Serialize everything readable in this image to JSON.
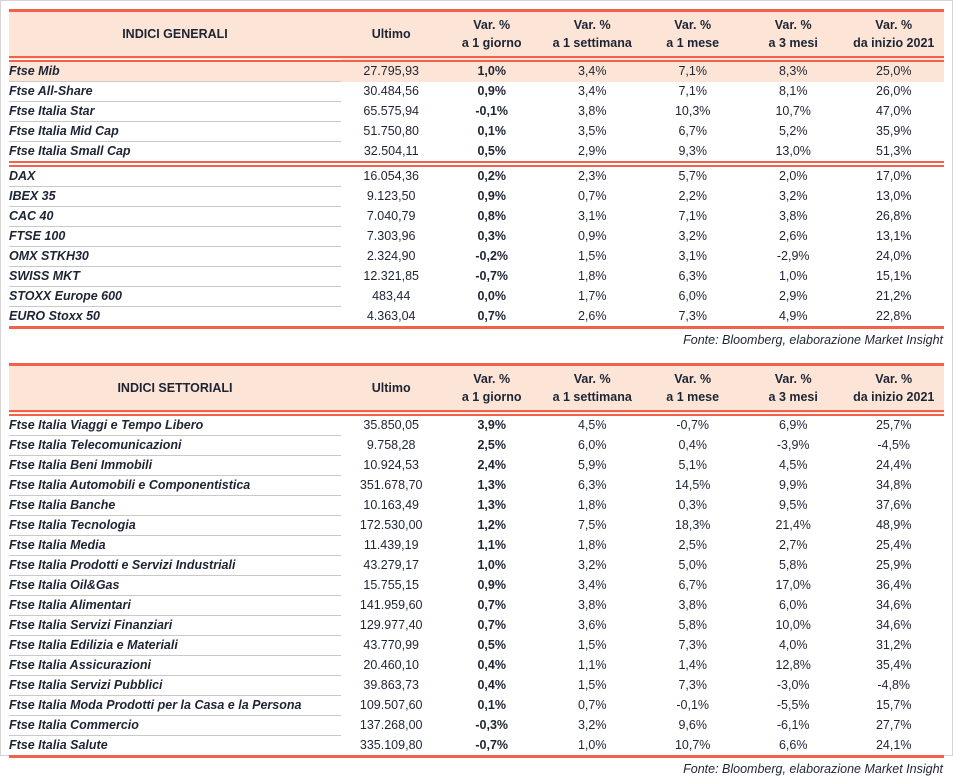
{
  "colors": {
    "accent_red": "#f5604a",
    "header_peach": "#fce5d7",
    "text_dark": "#1d2433",
    "row_divider": "#c9c9c9"
  },
  "columns": {
    "ultimo": "Ultimo",
    "var_label": "Var. %",
    "periods": [
      "a 1 giorno",
      "a 1 settimana",
      "a 1 mese",
      "a 3 mesi",
      "da inizio 2021"
    ]
  },
  "fonte": "Fonte: Bloomberg, elaborazione Market Insight",
  "generali": {
    "title": "INDICI GENERALI",
    "highlight_row": 0,
    "group_break_after": 4,
    "rows": [
      [
        "Ftse Mib",
        "27.795,93",
        "1,0%",
        "3,4%",
        "7,1%",
        "8,3%",
        "25,0%"
      ],
      [
        "Ftse All-Share",
        "30.484,56",
        "0,9%",
        "3,4%",
        "7,1%",
        "8,1%",
        "26,0%"
      ],
      [
        "Ftse Italia Star",
        "65.575,94",
        "-0,1%",
        "3,8%",
        "10,3%",
        "10,7%",
        "47,0%"
      ],
      [
        "Ftse Italia Mid Cap",
        "51.750,80",
        "0,1%",
        "3,5%",
        "6,7%",
        "5,2%",
        "35,9%"
      ],
      [
        "Ftse Italia Small Cap",
        "32.504,11",
        "0,5%",
        "2,9%",
        "9,3%",
        "13,0%",
        "51,3%"
      ],
      [
        "DAX",
        "16.054,36",
        "0,2%",
        "2,3%",
        "5,7%",
        "2,0%",
        "17,0%"
      ],
      [
        "IBEX 35",
        "9.123,50",
        "0,9%",
        "0,7%",
        "2,2%",
        "3,2%",
        "13,0%"
      ],
      [
        "CAC 40",
        "7.040,79",
        "0,8%",
        "3,1%",
        "7,1%",
        "3,8%",
        "26,8%"
      ],
      [
        "FTSE 100",
        "7.303,96",
        "0,3%",
        "0,9%",
        "3,2%",
        "2,6%",
        "13,1%"
      ],
      [
        "OMX STKH30",
        "2.324,90",
        "-0,2%",
        "1,5%",
        "3,1%",
        "-2,9%",
        "24,0%"
      ],
      [
        "SWISS MKT",
        "12.321,85",
        "-0,7%",
        "1,8%",
        "6,3%",
        "1,0%",
        "15,1%"
      ],
      [
        "STOXX Europe 600",
        "483,44",
        "0,0%",
        "1,7%",
        "6,0%",
        "2,9%",
        "21,2%"
      ],
      [
        "EURO Stoxx 50",
        "4.363,04",
        "0,7%",
        "2,6%",
        "7,3%",
        "4,9%",
        "22,8%"
      ]
    ]
  },
  "settoriali": {
    "title": "INDICI SETTORIALI",
    "highlight_row": null,
    "group_break_after": null,
    "rows": [
      [
        "Ftse Italia Viaggi e Tempo Libero",
        "35.850,05",
        "3,9%",
        "4,5%",
        "-0,7%",
        "6,9%",
        "25,7%"
      ],
      [
        "Ftse Italia Telecomunicazioni",
        "9.758,28",
        "2,5%",
        "6,0%",
        "0,4%",
        "-3,9%",
        "-4,5%"
      ],
      [
        "Ftse Italia Beni Immobili",
        "10.924,53",
        "2,4%",
        "5,9%",
        "5,1%",
        "4,5%",
        "24,4%"
      ],
      [
        "Ftse Italia Automobili e Componentistica",
        "351.678,70",
        "1,3%",
        "6,3%",
        "14,5%",
        "9,9%",
        "34,8%"
      ],
      [
        "Ftse Italia Banche",
        "10.163,49",
        "1,3%",
        "1,8%",
        "0,3%",
        "9,5%",
        "37,6%"
      ],
      [
        "Ftse Italia Tecnologia",
        "172.530,00",
        "1,2%",
        "7,5%",
        "18,3%",
        "21,4%",
        "48,9%"
      ],
      [
        "Ftse Italia Media",
        "11.439,19",
        "1,1%",
        "1,8%",
        "2,5%",
        "2,7%",
        "25,4%"
      ],
      [
        "Ftse Italia Prodotti e Servizi Industriali",
        "43.279,17",
        "1,0%",
        "3,2%",
        "5,0%",
        "5,8%",
        "25,9%"
      ],
      [
        "Ftse Italia Oil&Gas",
        "15.755,15",
        "0,9%",
        "3,4%",
        "6,7%",
        "17,0%",
        "36,4%"
      ],
      [
        "Ftse Italia Alimentari",
        "141.959,60",
        "0,7%",
        "3,8%",
        "3,8%",
        "6,0%",
        "34,6%"
      ],
      [
        "Ftse Italia Servizi Finanziari",
        "129.977,40",
        "0,7%",
        "3,6%",
        "5,8%",
        "10,0%",
        "34,6%"
      ],
      [
        "Ftse Italia Edilizia e Materiali",
        "43.770,99",
        "0,5%",
        "1,5%",
        "7,3%",
        "4,0%",
        "31,2%"
      ],
      [
        "Ftse Italia Assicurazioni",
        "20.460,10",
        "0,4%",
        "1,1%",
        "1,4%",
        "12,8%",
        "35,4%"
      ],
      [
        "Ftse Italia Servizi Pubblici",
        "39.863,73",
        "0,4%",
        "1,5%",
        "7,3%",
        "-3,0%",
        "-4,8%"
      ],
      [
        "Ftse Italia Moda Prodotti per la Casa e la Persona",
        "109.507,60",
        "0,1%",
        "0,7%",
        "-0,1%",
        "-5,5%",
        "15,7%"
      ],
      [
        "Ftse Italia Commercio",
        "137.268,00",
        "-0,3%",
        "3,2%",
        "9,6%",
        "-6,1%",
        "27,7%"
      ],
      [
        "Ftse Italia Salute",
        "335.109,80",
        "-0,7%",
        "1,0%",
        "10,7%",
        "6,6%",
        "24,1%"
      ]
    ]
  }
}
